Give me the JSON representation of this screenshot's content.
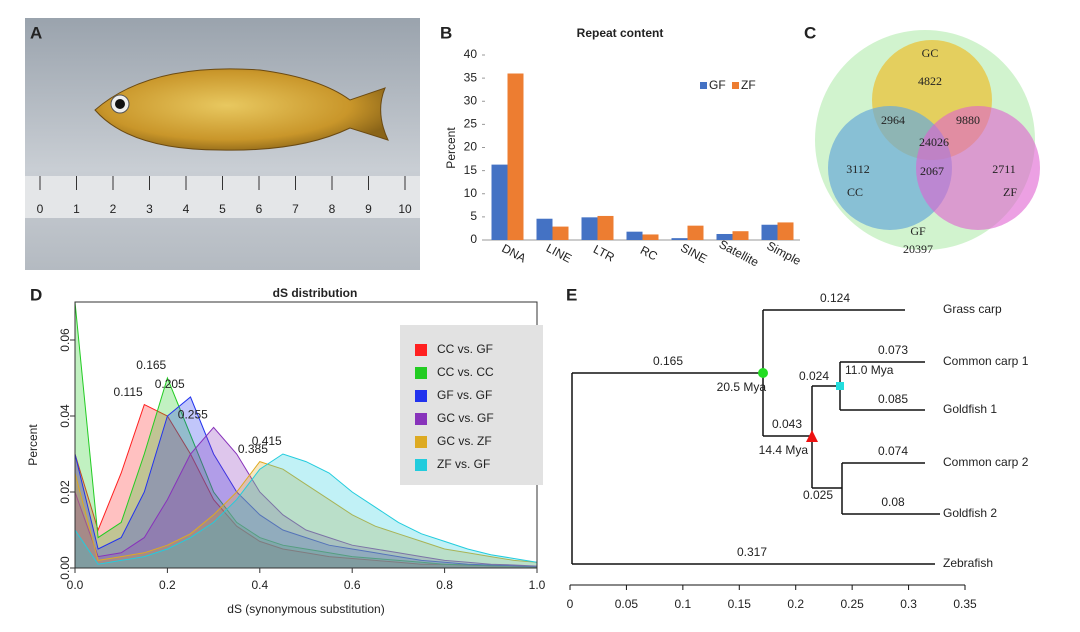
{
  "panel_labels": [
    "A",
    "B",
    "C",
    "D",
    "E"
  ],
  "photo": {
    "ruler_labels": [
      "0",
      "1",
      "2",
      "3",
      "4",
      "5",
      "6",
      "7",
      "8",
      "9",
      "10"
    ]
  },
  "chart_data": [
    {
      "type": "bar",
      "title": "Repeat content",
      "y_label": "Percent",
      "categories": [
        "DNA",
        "LINE",
        "LTR",
        "RC",
        "SINE",
        "Satellite",
        "Simple"
      ],
      "series": [
        {
          "name": "GF",
          "color": "#4472c4",
          "values": [
            16.3,
            4.6,
            4.9,
            1.8,
            0.4,
            1.3,
            3.3
          ]
        },
        {
          "name": "ZF",
          "color": "#ed7d31",
          "values": [
            36,
            2.9,
            5.2,
            1.2,
            3.1,
            1.9,
            3.8
          ]
        }
      ],
      "ylim": [
        0,
        40
      ],
      "yticks": [
        0,
        5,
        10,
        15,
        20,
        25,
        30,
        35,
        40
      ],
      "legend": "top-right"
    },
    {
      "type": "area",
      "title": "dS distribution",
      "y_label": "Percent",
      "x_label": "dS (synonymous substitution)",
      "x": [
        0,
        0.05,
        0.1,
        0.15,
        0.2,
        0.25,
        0.3,
        0.35,
        0.4,
        0.45,
        0.5,
        0.55,
        0.6,
        0.65,
        0.7,
        0.75,
        0.8,
        0.85,
        0.9,
        0.95,
        1
      ],
      "series": [
        {
          "name": "CC vs. GF",
          "color": "#ff2020",
          "peak": 0.115,
          "values": [
            0.03,
            0.01,
            0.025,
            0.043,
            0.04,
            0.03,
            0.018,
            0.011,
            0.007,
            0.005,
            0.004,
            0.003,
            0.0025,
            0.002,
            0.0015,
            0.001,
            0.001,
            0.0008,
            0.0006,
            0.0005,
            0.0003
          ]
        },
        {
          "name": "CC vs. CC",
          "color": "#22cc22",
          "peak": 0.165,
          "values": [
            0.07,
            0.008,
            0.012,
            0.03,
            0.05,
            0.035,
            0.02,
            0.012,
            0.008,
            0.006,
            0.005,
            0.004,
            0.003,
            0.0025,
            0.002,
            0.0015,
            0.001,
            0.0008,
            0.0006,
            0.0005,
            0.0003
          ]
        },
        {
          "name": "GF vs. GF",
          "color": "#2233ee",
          "peak": 0.205,
          "values": [
            0.03,
            0.005,
            0.008,
            0.02,
            0.04,
            0.045,
            0.03,
            0.02,
            0.014,
            0.01,
            0.008,
            0.006,
            0.005,
            0.004,
            0.003,
            0.002,
            0.0015,
            0.001,
            0.0008,
            0.0006,
            0.0004
          ]
        },
        {
          "name": "GC vs. GF",
          "color": "#8833bb",
          "peak": 0.255,
          "values": [
            0.02,
            0.003,
            0.004,
            0.008,
            0.018,
            0.03,
            0.037,
            0.03,
            0.02,
            0.014,
            0.01,
            0.008,
            0.006,
            0.005,
            0.004,
            0.003,
            0.002,
            0.0015,
            0.001,
            0.0008,
            0.0005
          ]
        },
        {
          "name": "GC vs. ZF",
          "color": "#ddaa22",
          "peak": 0.385,
          "values": [
            0.025,
            0.002,
            0.003,
            0.004,
            0.006,
            0.009,
            0.014,
            0.02,
            0.028,
            0.026,
            0.022,
            0.018,
            0.014,
            0.011,
            0.009,
            0.007,
            0.005,
            0.004,
            0.003,
            0.002,
            0.0015
          ]
        },
        {
          "name": "ZF vs. GF",
          "color": "#22ccdd",
          "peak": 0.415,
          "values": [
            0.01,
            0.001,
            0.002,
            0.003,
            0.005,
            0.008,
            0.012,
            0.018,
            0.026,
            0.03,
            0.028,
            0.025,
            0.02,
            0.016,
            0.012,
            0.009,
            0.007,
            0.005,
            0.0035,
            0.0025,
            0.0015
          ]
        }
      ],
      "xlim": [
        0,
        1
      ],
      "xticks": [
        {
          "value": 0,
          "label": "0.0"
        },
        0.2,
        0.4,
        0.6,
        0.8,
        {
          "value": 1,
          "label": "1.0"
        }
      ],
      "ylim": [
        0,
        0.07
      ],
      "yticks": [
        {
          "value": 0,
          "label": "0.00"
        },
        0.02,
        0.04,
        0.06
      ],
      "legend": "top-right"
    }
  ],
  "venn": {
    "sets": [
      "GC",
      "CC",
      "ZF",
      "GF"
    ],
    "counts": {
      "gc_only": "4822",
      "cc_only": "3112",
      "zf_only": "2711",
      "gf_only": "20397",
      "gc_cc": "2964",
      "gc_zf": "9880",
      "cc_zf": "2067",
      "all": "24026"
    }
  },
  "tree": {
    "leaves": [
      "Grass carp",
      "Common carp 1",
      "Goldfish 1",
      "Common carp 2",
      "Goldfish 2",
      "Zebrafish"
    ],
    "branch_labels": [
      "0.124",
      "0.165",
      "0.073",
      "0.024",
      "0.085",
      "0.043",
      "0.074",
      "0.025",
      "0.08",
      "0.317"
    ],
    "node_ages": [
      "20.5 Mya",
      "11.0 Mya",
      "14.4 Mya"
    ],
    "xlim": [
      0,
      0.35
    ],
    "xticks": [
      0,
      0.05,
      0.1,
      0.15,
      0.2,
      0.25,
      0.3,
      0.35
    ]
  }
}
